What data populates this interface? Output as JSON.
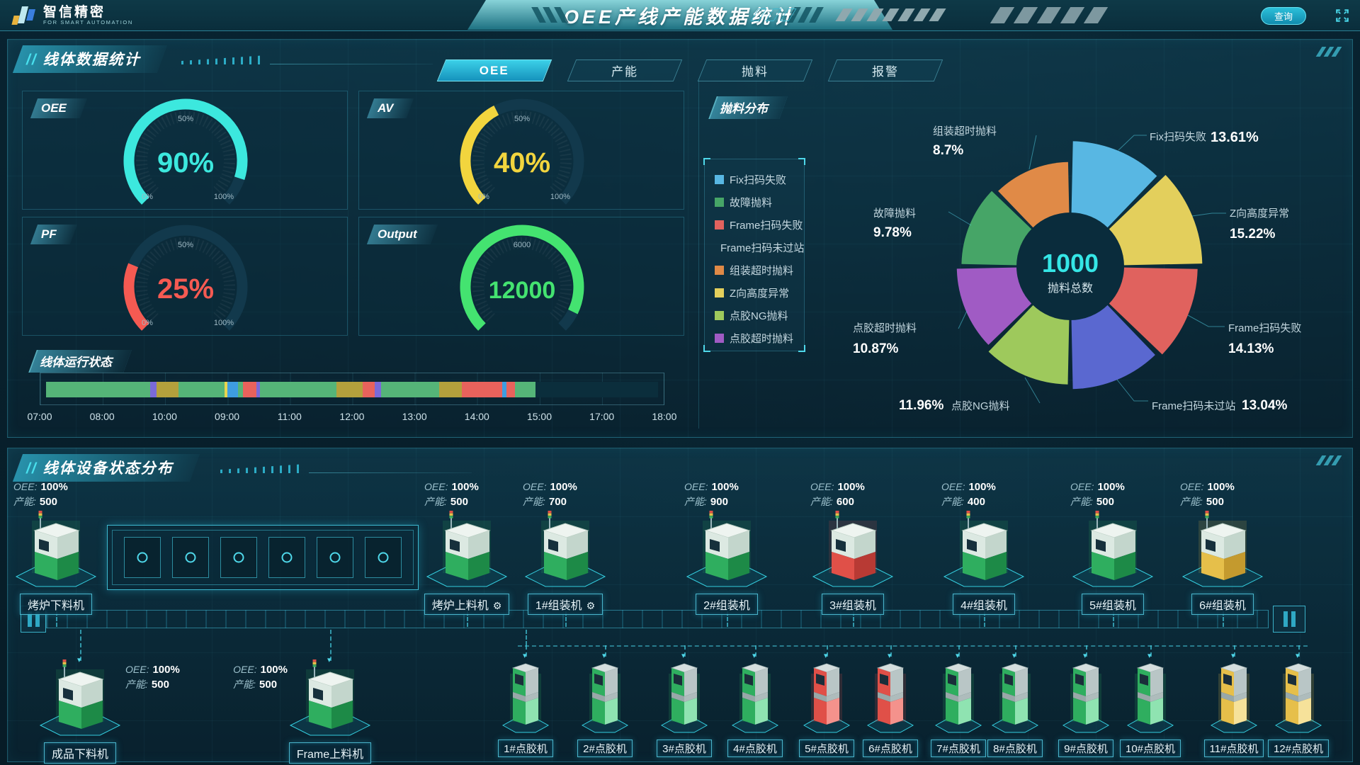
{
  "header": {
    "logo": {
      "title": "智信精密",
      "subtitle": "FOR SMART AUTOMATION"
    },
    "title": "OEE产线产能数据统计",
    "query_button": "查询"
  },
  "stats_panel": {
    "title": "线体数据统计",
    "tabs": [
      {
        "label": "OEE",
        "active": true
      },
      {
        "label": "产能",
        "active": false
      },
      {
        "label": "抛料",
        "active": false
      },
      {
        "label": "报警",
        "active": false
      }
    ],
    "gauges": [
      {
        "name": "OEE",
        "value": "90%",
        "percent": 90,
        "color": "#3ce8de",
        "ticks": [
          "0%",
          "50%",
          "100%"
        ]
      },
      {
        "name": "AV",
        "value": "40%",
        "percent": 40,
        "color": "#f2d53e",
        "ticks": [
          "0%",
          "50%",
          "100%"
        ]
      },
      {
        "name": "PF",
        "value": "25%",
        "percent": 25,
        "color": "#f55a52",
        "ticks": [
          "0%",
          "50%",
          "100%"
        ]
      },
      {
        "name": "Output",
        "value": "12000",
        "percent": 93,
        "color": "#44e370",
        "ticks": [
          "",
          "6000",
          ""
        ]
      }
    ],
    "runtime": {
      "title": "线体运行状态",
      "ticks": [
        "07:00",
        "08:00",
        "10:00",
        "09:00",
        "11:00",
        "12:00",
        "13:00",
        "14:00",
        "15:00",
        "17:00",
        "18:00"
      ],
      "status_colors": {
        "run": "#55b478",
        "setup": "#b3a03c",
        "wait": "#3e9de0",
        "fault": "#e8625c",
        "pause": "#7a6ad8",
        "micro": "#e8d44f",
        "idle": "#0b2e3c"
      },
      "segments": [
        [
          "run",
          17
        ],
        [
          "pause",
          1.1
        ],
        [
          "setup",
          3.6
        ],
        [
          "run",
          7.5
        ],
        [
          "micro",
          0.4
        ],
        [
          "wait",
          1.8
        ],
        [
          "run",
          0.8
        ],
        [
          "fault",
          2.2
        ],
        [
          "pause",
          0.6
        ],
        [
          "run",
          12.5
        ],
        [
          "setup",
          4.2
        ],
        [
          "fault",
          2.0
        ],
        [
          "pause",
          1.0
        ],
        [
          "run",
          9.5
        ],
        [
          "setup",
          3.8
        ],
        [
          "fault",
          6.6
        ],
        [
          "wait",
          0.6
        ],
        [
          "fault",
          1.4
        ],
        [
          "run",
          3.4
        ],
        [
          "idle",
          20
        ]
      ]
    }
  },
  "scrap_panel": {
    "title": "抛料分布",
    "center_value": "1000",
    "center_label": "抛料总数",
    "chart_data": {
      "type": "pie",
      "title": "抛料分布",
      "total": 1000,
      "legend_position": "left",
      "slices": [
        {
          "name": "Fix扫码失败",
          "pct": 13.61,
          "color": "#58b7e3"
        },
        {
          "name": "Z向高度异常",
          "pct": 15.22,
          "color": "#e3cf5c"
        },
        {
          "name": "Frame扫码失败",
          "pct": 14.13,
          "color": "#e0625e"
        },
        {
          "name": "Frame扫码未过站",
          "pct": 13.04,
          "color": "#5a68d0"
        },
        {
          "name": "点胶NG抛料",
          "pct": 11.96,
          "color": "#9ec95c"
        },
        {
          "name": "点胶超时抛料",
          "pct": 10.87,
          "color": "#a05bc4"
        },
        {
          "name": "故障抛料",
          "pct": 9.78,
          "color": "#46a567"
        },
        {
          "name": "组装超时抛料",
          "pct": 8.7,
          "color": "#e08a47"
        }
      ],
      "legend_order": [
        "Fix扫码失败",
        "故障抛料",
        "Frame扫码失败",
        "Frame扫码未过站",
        "组装超时抛料",
        "Z向高度异常",
        "点胶NG抛料",
        "点胶超时抛料"
      ]
    }
  },
  "devices_panel": {
    "title": "线体设备状态分布",
    "stat_labels": {
      "oee": "OEE:",
      "capacity": "产能:"
    },
    "status_colors": {
      "green": {
        "body": "#2fae5f",
        "light": "#8fe3b1",
        "dark": "#1d8a47"
      },
      "red": {
        "body": "#e05048",
        "light": "#f4928c",
        "dark": "#b83a34"
      },
      "yellow": {
        "body": "#e6bf4a",
        "light": "#f6e29a",
        "dark": "#c49a2e"
      }
    },
    "top_row": [
      {
        "label": "烤炉下料机",
        "oee": "100%",
        "capacity": "500",
        "status": "green",
        "gear": false
      },
      {
        "label": "烤炉上料机",
        "oee": "100%",
        "capacity": "500",
        "status": "green",
        "gear": true
      },
      {
        "label": "1#组装机",
        "oee": "100%",
        "capacity": "700",
        "status": "green",
        "gear": true
      },
      {
        "label": "2#组装机",
        "oee": "100%",
        "capacity": "900",
        "status": "green",
        "gear": false
      },
      {
        "label": "3#组装机",
        "oee": "100%",
        "capacity": "600",
        "status": "red",
        "gear": false
      },
      {
        "label": "4#组装机",
        "oee": "100%",
        "capacity": "400",
        "status": "green",
        "gear": false
      },
      {
        "label": "5#组装机",
        "oee": "100%",
        "capacity": "500",
        "status": "green",
        "gear": false
      },
      {
        "label": "6#组装机",
        "oee": "100%",
        "capacity": "500",
        "status": "yellow",
        "gear": false
      }
    ],
    "loaders": [
      {
        "label": "成品下料机",
        "oee": "100%",
        "capacity": "500",
        "status": "green",
        "stats_side": "right"
      },
      {
        "label": "Frame上料机",
        "oee": "100%",
        "capacity": "500",
        "status": "green",
        "stats_side": "left"
      }
    ],
    "dispensers": [
      {
        "label": "1#点胶机",
        "status": "green"
      },
      {
        "label": "2#点胶机",
        "status": "green"
      },
      {
        "label": "3#点胶机",
        "status": "green"
      },
      {
        "label": "4#点胶机",
        "status": "green"
      },
      {
        "label": "5#点胶机",
        "status": "red"
      },
      {
        "label": "6#点胶机",
        "status": "red"
      },
      {
        "label": "7#点胶机",
        "status": "green"
      },
      {
        "label": "8#点胶机",
        "status": "green"
      },
      {
        "label": "9#点胶机",
        "status": "green"
      },
      {
        "label": "10#点胶机",
        "status": "green"
      },
      {
        "label": "11#点胶机",
        "status": "yellow"
      },
      {
        "label": "12#点胶机",
        "status": "yellow"
      }
    ]
  }
}
